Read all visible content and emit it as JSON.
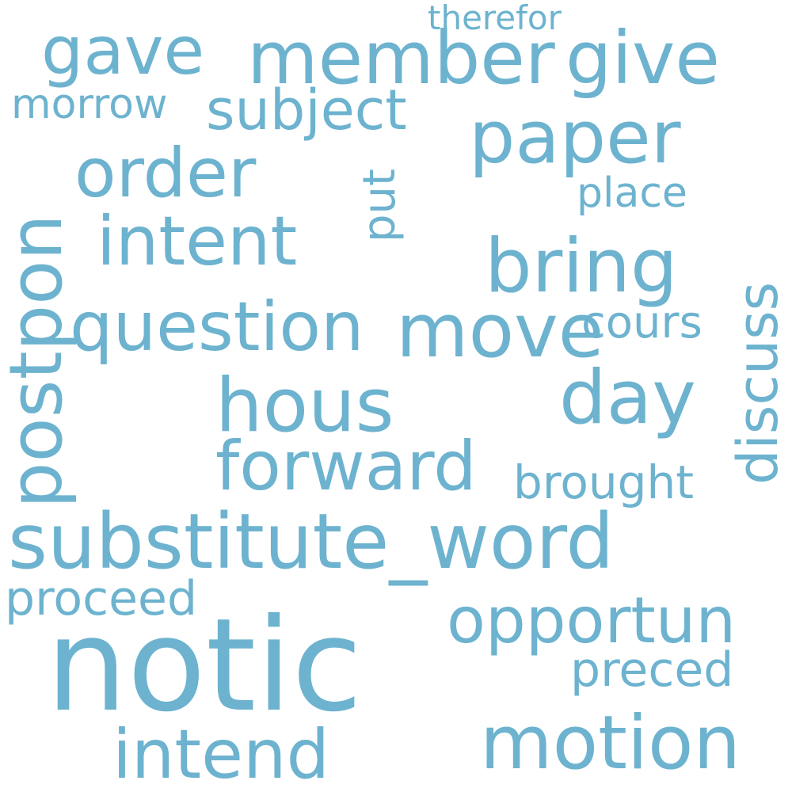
{
  "wordcloud": {
    "color": "#6db3cf",
    "words": {
      "notic": "notic",
      "substitute_word": "substitute_word",
      "motion": "motion",
      "hous": "hous",
      "question": "question",
      "move": "move",
      "bring": "bring",
      "postpon": "postpon",
      "forward": "forward",
      "day": "day",
      "opportun": "opportun",
      "intend": "intend",
      "order": "order",
      "intent": "intent",
      "member": "member",
      "give": "give",
      "paper": "paper",
      "gave": "gave",
      "subject": "subject",
      "discuss": "discuss",
      "proceed": "proceed",
      "brought": "brought",
      "preced": "preced",
      "cours": "cours",
      "place": "place",
      "morrow": "morrow",
      "put": "put",
      "therefor": "therefor"
    }
  }
}
